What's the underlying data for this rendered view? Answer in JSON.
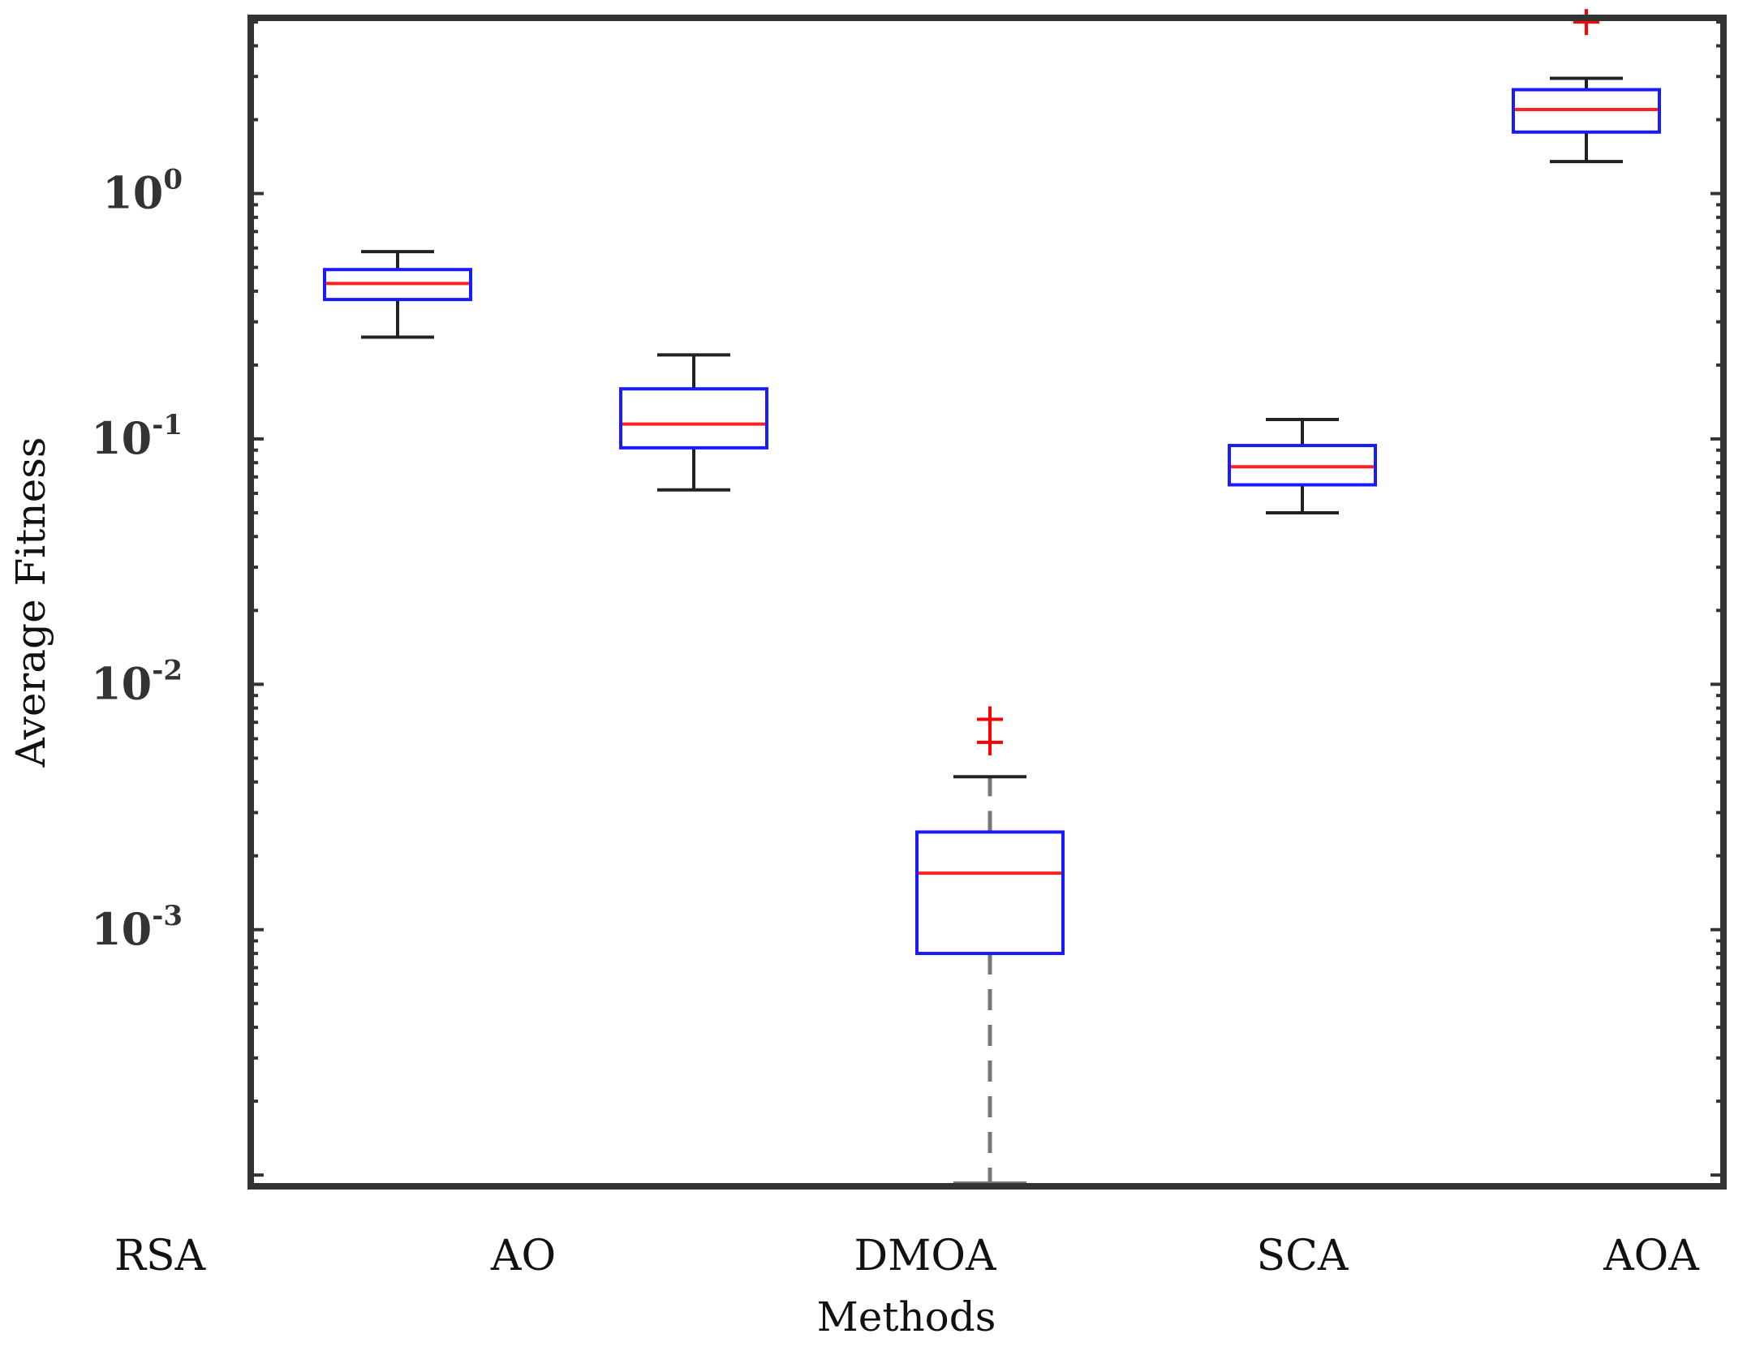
{
  "chart_data": {
    "type": "box",
    "title": "",
    "xlabel": "Methods",
    "ylabel": "Average Fitness",
    "yscale": "log",
    "ylim": [
      9e-05,
      5.2
    ],
    "categories": [
      "RSA",
      "AO",
      "DMOA",
      "SCA",
      "AOA"
    ],
    "boxes": [
      {
        "name": "RSA",
        "min": 0.26,
        "q1": 0.37,
        "median": 0.43,
        "q3": 0.49,
        "max": 0.58,
        "outliers": []
      },
      {
        "name": "AO",
        "min": 0.062,
        "q1": 0.092,
        "median": 0.115,
        "q3": 0.16,
        "max": 0.22,
        "outliers": []
      },
      {
        "name": "DMOA",
        "min": 9e-05,
        "q1": 0.0008,
        "median": 0.0017,
        "q3": 0.0025,
        "max": 0.0042,
        "outliers": [
          0.0058,
          0.0072
        ]
      },
      {
        "name": "SCA",
        "min": 0.05,
        "q1": 0.065,
        "median": 0.077,
        "q3": 0.094,
        "max": 0.12,
        "outliers": []
      },
      {
        "name": "AOA",
        "min": 1.35,
        "q1": 1.78,
        "median": 2.2,
        "q3": 2.65,
        "max": 2.95,
        "outliers": [
          5.0
        ]
      }
    ],
    "yticks": [
      {
        "base": "10",
        "exp": "0",
        "value": 1
      },
      {
        "base": "10",
        "exp": "-1",
        "value": 0.1
      },
      {
        "base": "10",
        "exp": "-2",
        "value": 0.01
      },
      {
        "base": "10",
        "exp": "-3",
        "value": 0.001
      }
    ],
    "grid": false,
    "colors": {
      "box": "#1a1aff",
      "median": "#ff2020",
      "whisker": "#222222",
      "outlier": "#ff0000",
      "axis": "#333333"
    }
  }
}
